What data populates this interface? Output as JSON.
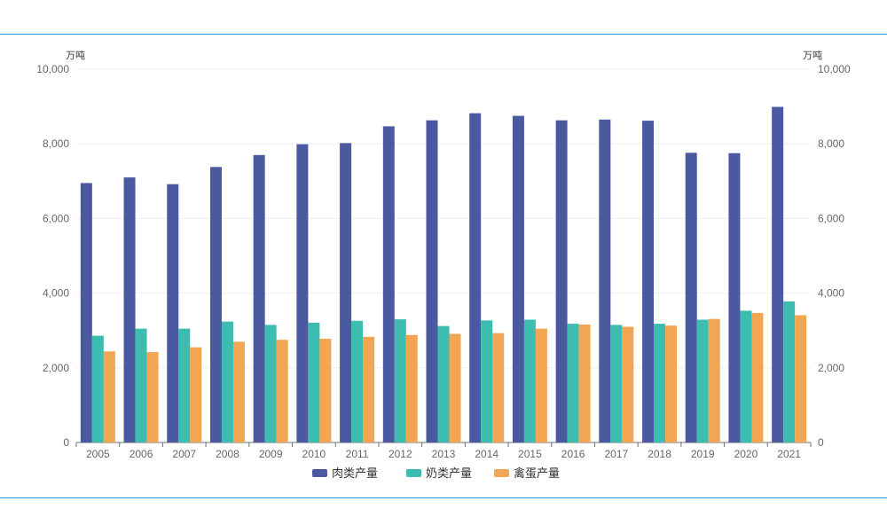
{
  "chart_data": {
    "type": "bar",
    "categories": [
      "2005",
      "2006",
      "2007",
      "2008",
      "2009",
      "2010",
      "2011",
      "2012",
      "2013",
      "2014",
      "2015",
      "2016",
      "2017",
      "2018",
      "2019",
      "2020",
      "2021"
    ],
    "series": [
      {
        "name": "肉类产量",
        "color": "#4b5aa0",
        "values": [
          6950,
          7100,
          6920,
          7380,
          7700,
          7990,
          8020,
          8470,
          8630,
          8820,
          8750,
          8630,
          8650,
          8620,
          7760,
          7750,
          8990
        ]
      },
      {
        "name": "奶类产量",
        "color": "#3dbdb0",
        "values": [
          2860,
          3050,
          3050,
          3240,
          3150,
          3210,
          3260,
          3300,
          3120,
          3270,
          3290,
          3180,
          3150,
          3180,
          3290,
          3530,
          3780
        ]
      },
      {
        "name": "禽蛋产量",
        "color": "#f2a552",
        "values": [
          2440,
          2420,
          2550,
          2700,
          2750,
          2780,
          2830,
          2880,
          2910,
          2930,
          3050,
          3160,
          3100,
          3130,
          3310,
          3470,
          3410
        ]
      }
    ],
    "ylim": [
      0,
      10000
    ],
    "y_ticks": [
      "0",
      "2,000",
      "4,000",
      "6,000",
      "8,000",
      "10,000"
    ],
    "y_tick_values": [
      0,
      2000,
      4000,
      6000,
      8000,
      10000
    ],
    "y_unit_left": "万吨",
    "y_unit_right": "万吨",
    "grid": true,
    "legend_position": "bottom"
  }
}
